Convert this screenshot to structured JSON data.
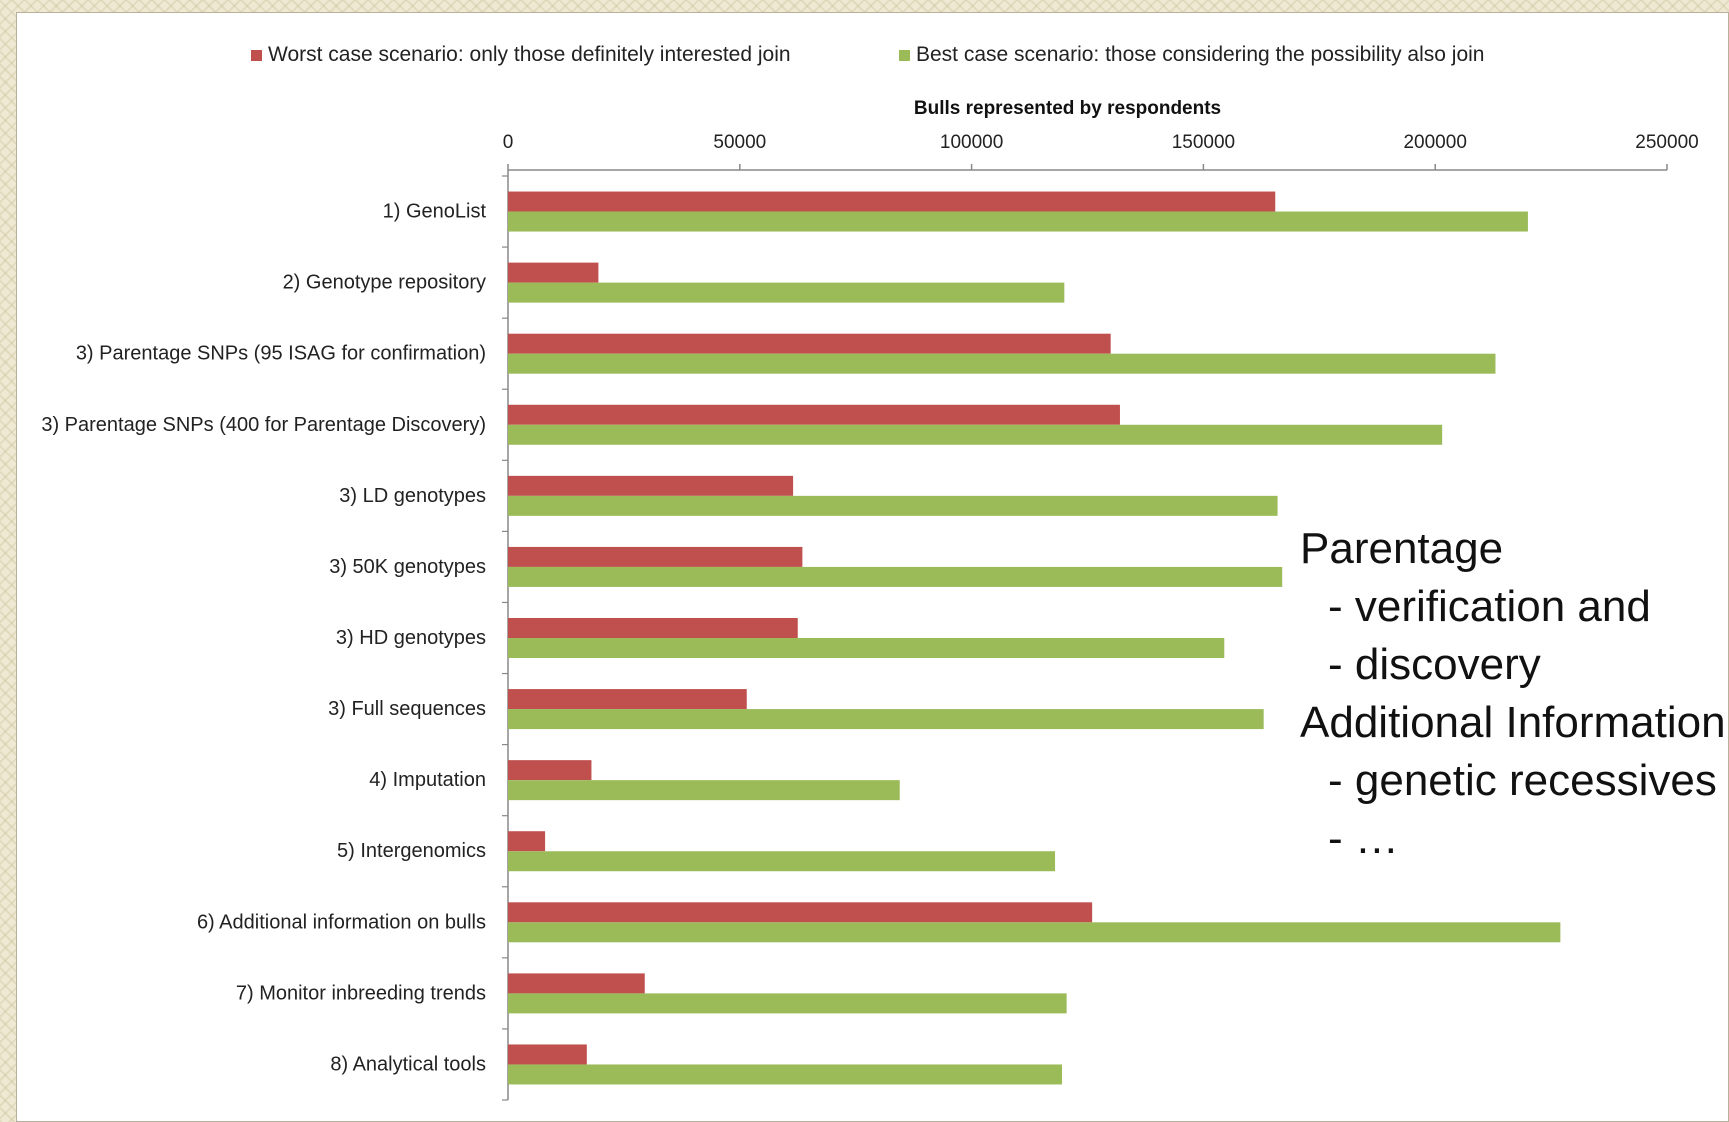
{
  "overlay": {
    "lines": [
      "Parentage",
      "- verification and",
      "- discovery",
      "Additional Information",
      "- genetic recessives",
      "- …"
    ]
  },
  "chart_data": {
    "type": "bar",
    "orientation": "horizontal",
    "title": "Bulls represented by respondents",
    "axis_title": "Bulls represented by respondents",
    "axis_position": "top",
    "xlim": [
      0,
      250000
    ],
    "xticks": [
      0,
      50000,
      100000,
      150000,
      200000,
      250000
    ],
    "categories": [
      "1) GenoList",
      "2) Genotype repository",
      "3) Parentage SNPs (95 ISAG for confirmation)",
      "3) Parentage SNPs (400 for Parentage Discovery)",
      "3) LD genotypes",
      "3) 50K genotypes",
      "3) HD genotypes",
      "3) Full sequences",
      "4) Imputation",
      "5) Intergenomics",
      "6) Additional information on bulls",
      "7) Monitor inbreeding trends",
      "8) Analytical tools"
    ],
    "series": [
      {
        "name": "Worst case scenario: only those definitely interested join",
        "color": "#c0504d",
        "values": [
          165500,
          19500,
          130000,
          132000,
          61500,
          63500,
          62500,
          51500,
          18000,
          8000,
          126000,
          29500,
          17000
        ]
      },
      {
        "name": "Best case scenario: those considering the possibility also join",
        "color": "#9bbb59",
        "values": [
          220000,
          120000,
          213000,
          201500,
          166000,
          167000,
          154500,
          163000,
          84500,
          118000,
          227000,
          120500,
          119500
        ]
      }
    ],
    "legend_position": "top",
    "grid": false
  }
}
